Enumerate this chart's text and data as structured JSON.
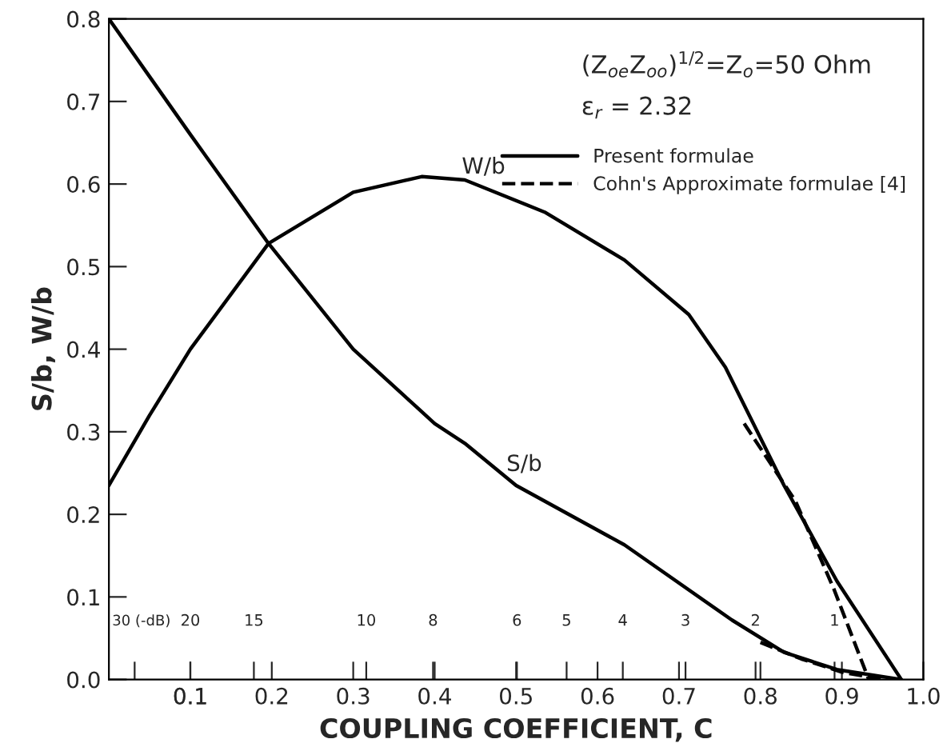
{
  "chart_data": {
    "type": "line",
    "xlabel": "COUPLING COEFFICIENT, C",
    "ylabel": "S/b, W/b",
    "xlim": [
      0,
      1.0
    ],
    "ylim": [
      0,
      0.8
    ],
    "xticks": [
      {
        "value": 0.0316,
        "label": null
      },
      {
        "value": 0.1,
        "label": null
      },
      {
        "value": 0.178,
        "label": null
      },
      {
        "value": 0.316,
        "label": null
      },
      {
        "value": 0.398,
        "label": null
      },
      {
        "value": 0.501,
        "label": null
      },
      {
        "value": 0.562,
        "label": null
      },
      {
        "value": 0.631,
        "label": null
      },
      {
        "value": 0.708,
        "label": null
      },
      {
        "value": 0.794,
        "label": null
      },
      {
        "value": 0.891,
        "label": null
      },
      {
        "value": 0.1,
        "label": "0.1"
      },
      {
        "value": 0.2,
        "label": "0.2"
      },
      {
        "value": 0.3,
        "label": "0.3"
      },
      {
        "value": 0.4,
        "label": "0.4"
      },
      {
        "value": 0.5,
        "label": "0.5"
      },
      {
        "value": 0.6,
        "label": "0.6"
      },
      {
        "value": 0.7,
        "label": "0.7"
      },
      {
        "value": 0.8,
        "label": "0.8"
      },
      {
        "value": 0.9,
        "label": "0.9"
      },
      {
        "value": 1.0,
        "label": "1.0"
      }
    ],
    "yticks": [
      {
        "value": 0,
        "label": "0.0"
      },
      {
        "value": 0.1,
        "label": "0.1"
      },
      {
        "value": 0.2,
        "label": "0.2"
      },
      {
        "value": 0.3,
        "label": "0.3"
      },
      {
        "value": 0.4,
        "label": "0.4"
      },
      {
        "value": 0.5,
        "label": "0.5"
      },
      {
        "value": 0.6,
        "label": "0.6"
      },
      {
        "value": 0.7,
        "label": "0.7"
      },
      {
        "value": 0.8,
        "label": "0.8"
      }
    ],
    "legend": "top right",
    "series": [
      {
        "name": "Present formulae",
        "color": "#000000",
        "line_style": "solid",
        "x": [
          0,
          0.05,
          0.1,
          0.196,
          0.3,
          0.384,
          0.437,
          0.535,
          0.633,
          0.712,
          0.757,
          0.829,
          0.894,
          0.973
        ],
        "values": [
          0.235,
          0.32,
          0.4,
          0.528,
          0.59,
          0.609,
          0.605,
          0.566,
          0.508,
          0.442,
          0.378,
          0.235,
          0.119,
          0
        ]
      },
      {
        "color": "#000000",
        "line_style": "solid",
        "x": [
          0,
          0.05,
          0.1,
          0.196,
          0.3,
          0.4,
          0.437,
          0.5,
          0.633,
          0.765,
          0.829,
          0.894,
          0.973
        ],
        "values": [
          0.8,
          0.73,
          0.66,
          0.528,
          0.4,
          0.31,
          0.286,
          0.235,
          0.163,
          0.072,
          0.033,
          0.012,
          0
        ]
      },
      {
        "name": "Cohn's Approximate formulae [4]",
        "color": "#000000",
        "line_style": "dashed",
        "x": [
          0.78,
          0.843,
          0.89,
          0.933
        ],
        "values": [
          0.31,
          0.216,
          0.11,
          0
        ]
      },
      {
        "color": "#000000",
        "line_style": "dashed",
        "x": [
          0.8,
          0.85,
          0.9,
          0.95
        ],
        "values": [
          0.045,
          0.025,
          0.009,
          0
        ]
      }
    ],
    "annotations": [
      "W/b",
      "S/b",
      "(Z$_{oe}$Z$_{oo}$)$^{1/2}$=Z$_{o}$=50 Ohm",
      "ε$_{r}$ = 2.32",
      "30 (-dB)",
      "20",
      "15",
      "10",
      "8",
      "6",
      "5",
      "4",
      "3",
      "2",
      "1"
    ]
  }
}
